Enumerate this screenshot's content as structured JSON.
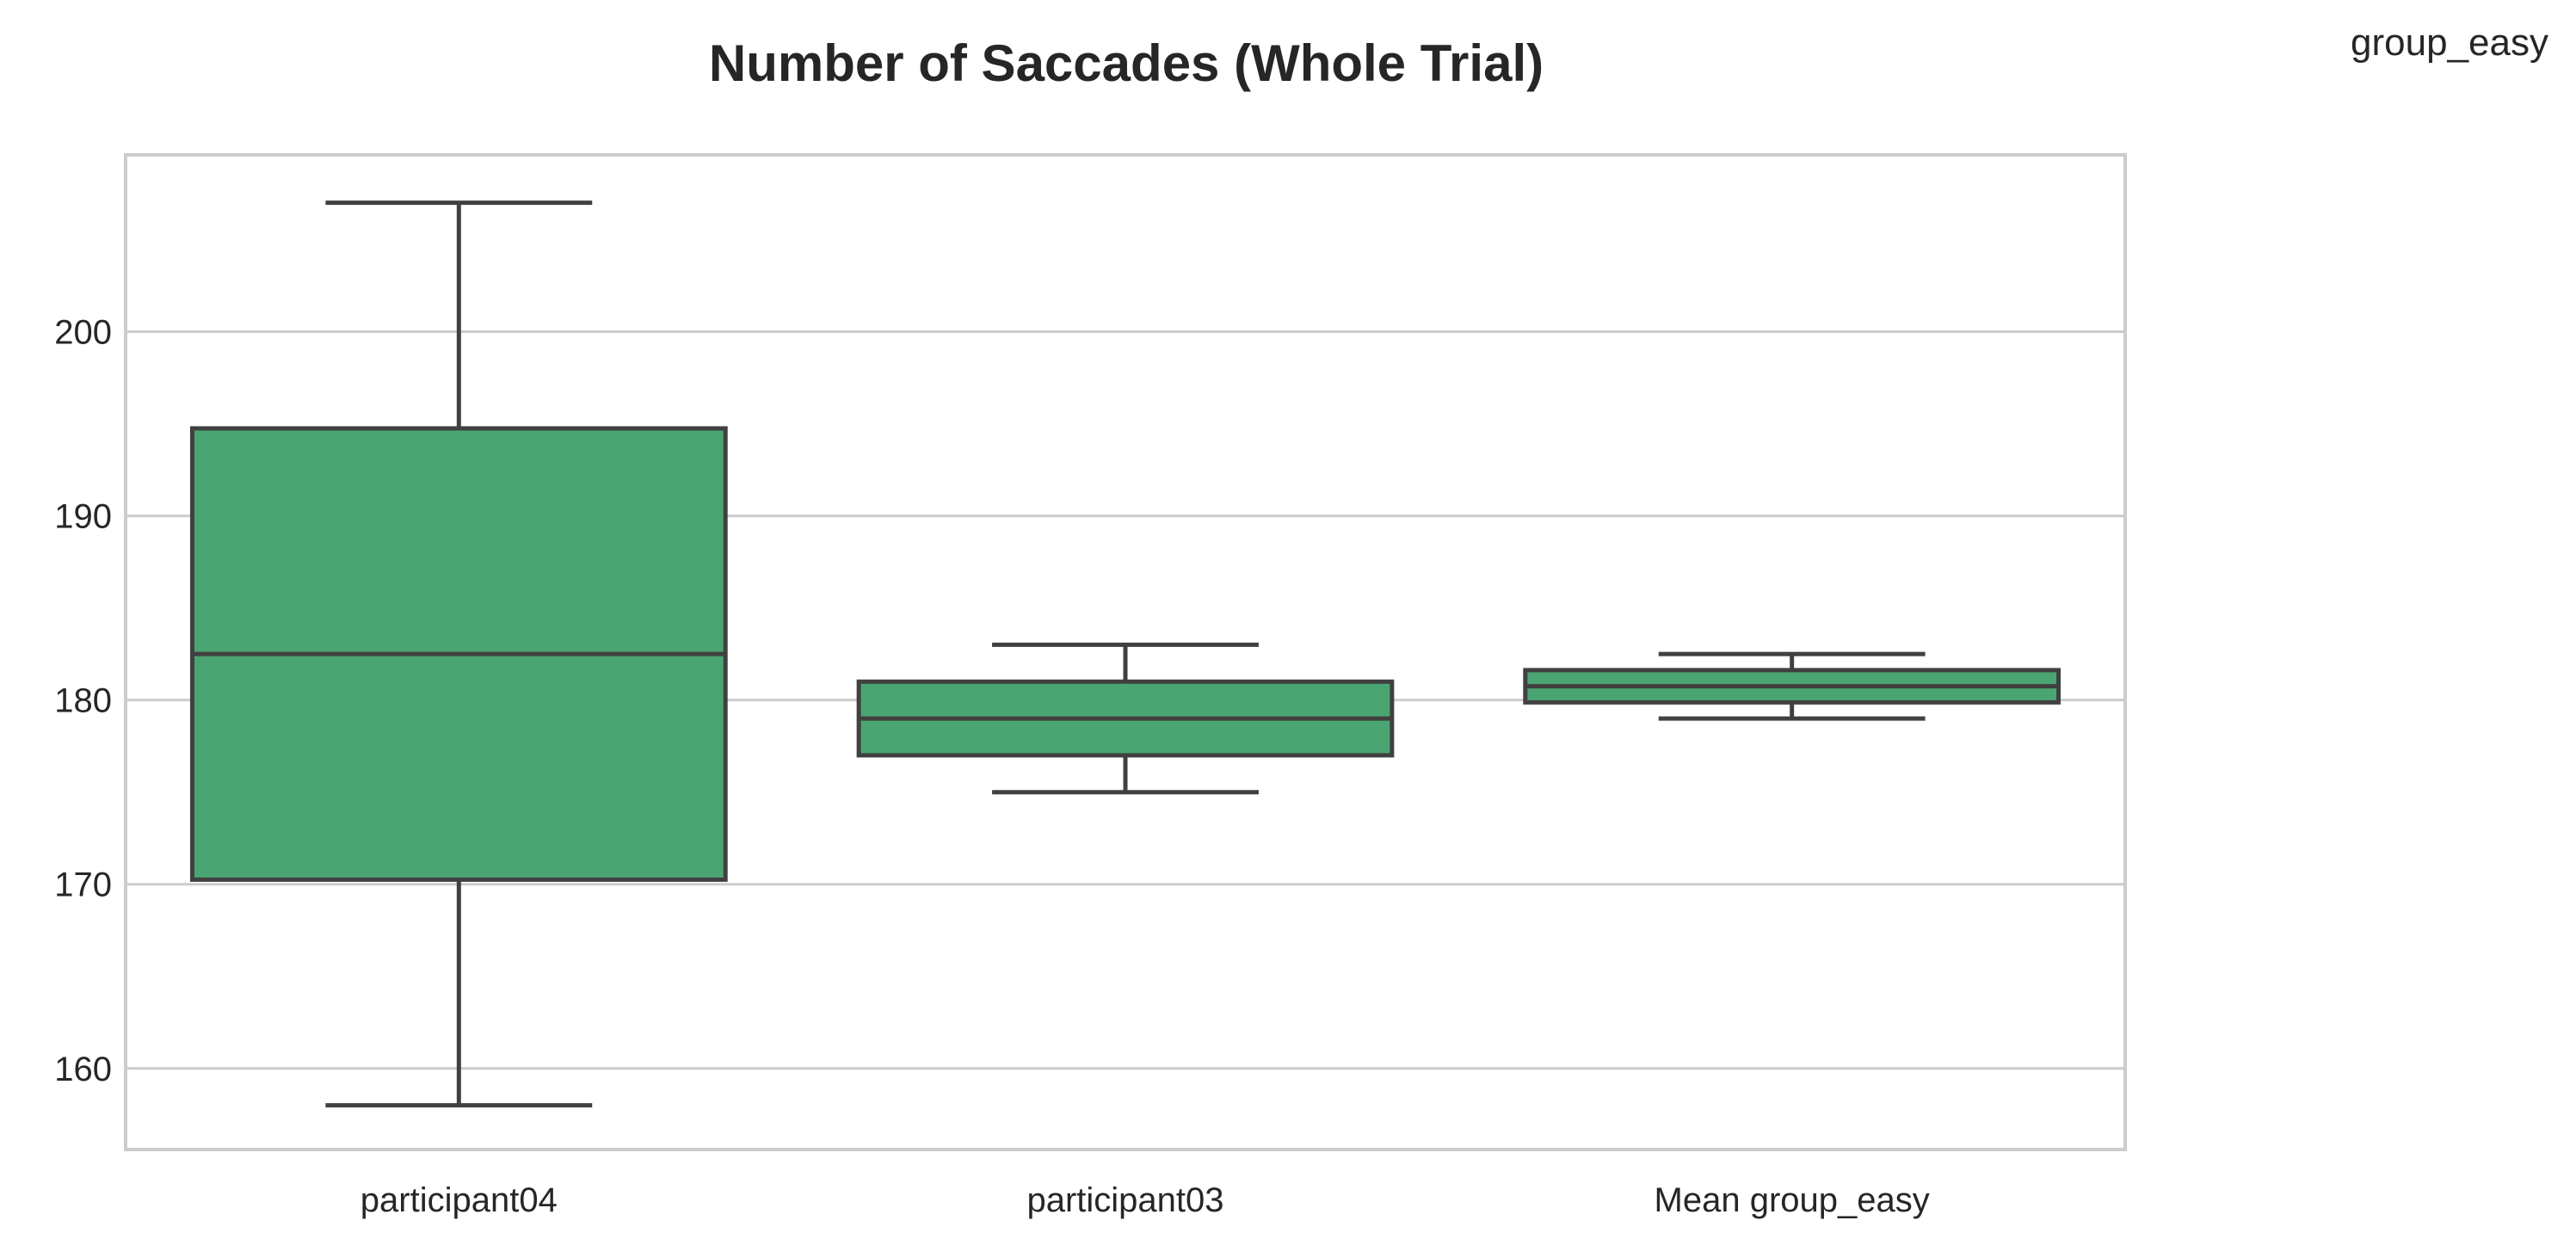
{
  "figure": {
    "corner_label": "group_easy"
  },
  "colors": {
    "box_fill": "#4ba572",
    "line": "#404040",
    "grid": "#cccccc",
    "text": "#262626"
  },
  "chart_data": {
    "type": "box",
    "title": "Number of Saccades (Whole Trial)",
    "xlabel": "",
    "ylabel": "",
    "ylim": [
      155.6,
      209.6
    ],
    "yticks": [
      160,
      170,
      180,
      190,
      200
    ],
    "grid": "horizontal",
    "categories": [
      "participant04",
      "participant03",
      "Mean group_easy"
    ],
    "boxes": [
      {
        "category": "participant04",
        "whisker_low": 158,
        "q1": 170.25,
        "median": 182.5,
        "q3": 194.75,
        "whisker_high": 207
      },
      {
        "category": "participant03",
        "whisker_low": 175,
        "q1": 177,
        "median": 179,
        "q3": 181,
        "whisker_high": 183
      },
      {
        "category": "Mean group_easy",
        "whisker_low": 179,
        "q1": 179.875,
        "median": 180.75,
        "q3": 181.625,
        "whisker_high": 182.5
      }
    ]
  }
}
